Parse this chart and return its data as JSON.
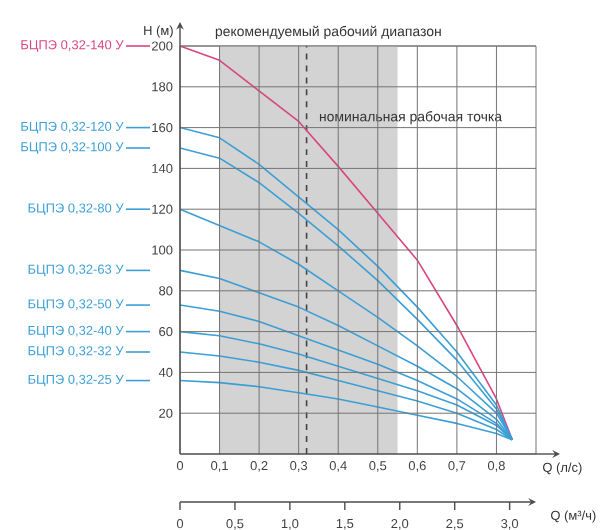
{
  "chart_data": {
    "type": "line",
    "xlabel": "Q (л/с)",
    "ylabel": "H (м)",
    "x2label": "Q (м³/ч)",
    "x": [
      0,
      0.1,
      0.2,
      0.3,
      0.4,
      0.5,
      0.6,
      0.7,
      0.8,
      0.84
    ],
    "series": [
      {
        "name": "БЦПЭ 0,32-140 У",
        "color": "#d9457f",
        "values": [
          200,
          193,
          178,
          163,
          141,
          118,
          95,
          63,
          27,
          7
        ]
      },
      {
        "name": "БЦПЭ 0,32-120 У",
        "color": "#3b9fd6",
        "values": [
          160,
          155,
          142,
          126,
          110,
          92,
          72,
          50,
          24,
          7
        ]
      },
      {
        "name": "БЦПЭ 0,32-100 У",
        "color": "#3b9fd6",
        "values": [
          150,
          145,
          133,
          118,
          102,
          85,
          66,
          46,
          22,
          7
        ]
      },
      {
        "name": "БЦПЭ 0,32-80 У",
        "color": "#3b9fd6",
        "values": [
          120,
          112,
          104,
          93,
          80,
          67,
          53,
          38,
          20,
          7
        ]
      },
      {
        "name": "БЦПЭ 0,32-63 У",
        "color": "#3b9fd6",
        "values": [
          90,
          86,
          79,
          72,
          63,
          53,
          43,
          32,
          17,
          7
        ]
      },
      {
        "name": "БЦПЭ 0,32-50 У",
        "color": "#3b9fd6",
        "values": [
          73,
          70,
          65,
          58,
          51,
          44,
          36,
          27,
          15,
          7
        ]
      },
      {
        "name": "БЦПЭ 0,32-40 У",
        "color": "#3b9fd6",
        "values": [
          60,
          58,
          54,
          49,
          43,
          37,
          31,
          24,
          14,
          7
        ]
      },
      {
        "name": "БЦПЭ 0,32-32 У",
        "color": "#3b9fd6",
        "values": [
          50,
          48,
          45,
          41,
          36,
          31,
          26,
          20,
          12,
          7
        ]
      },
      {
        "name": "БЦПЭ 0,32-25 У",
        "color": "#3b9fd6",
        "values": [
          36,
          35,
          33,
          30,
          27,
          23,
          19,
          15,
          10,
          7
        ]
      }
    ],
    "xlim": [
      0,
      0.9
    ],
    "ylim": [
      0,
      200
    ],
    "xticks": [
      0,
      {
        "value": 0.1,
        "label": "0,1"
      },
      {
        "value": 0.2,
        "label": "0,2"
      },
      {
        "value": 0.3,
        "label": "0,3"
      },
      {
        "value": 0.4,
        "label": "0,4"
      },
      {
        "value": 0.5,
        "label": "0,5"
      },
      {
        "value": 0.6,
        "label": "0,6"
      },
      {
        "value": 0.7,
        "label": "0,7"
      },
      {
        "value": 0.8,
        "label": "0,8"
      }
    ],
    "yticks": [
      20,
      40,
      60,
      80,
      100,
      120,
      140,
      160,
      180,
      200
    ],
    "x2lim": [
      0,
      3.24
    ],
    "x2ticks": [
      0,
      {
        "value": 0.5,
        "label": "0,5"
      },
      {
        "value": 1.0,
        "label": "1,0"
      },
      {
        "value": 1.5,
        "label": "1,5"
      },
      {
        "value": 2.0,
        "label": "2,0"
      },
      {
        "value": 2.5,
        "label": "2,5"
      },
      {
        "value": 3.0,
        "label": "3,0"
      }
    ],
    "bands": [
      {
        "axis": "x",
        "from": 0.1,
        "to": 0.55,
        "label": "рекомендуемый рабочий диапазон",
        "color": "#d3d3d3"
      }
    ],
    "ref_lines": [
      {
        "axis": "x",
        "value": 0.32,
        "line_style": "dashed",
        "color": "#444444"
      }
    ],
    "annotations": [
      {
        "text": "номинальная рабочая точка",
        "x": 0.32,
        "y": 160
      }
    ],
    "grid": true,
    "legend": "left",
    "marker": "none",
    "line_style": "solid"
  }
}
